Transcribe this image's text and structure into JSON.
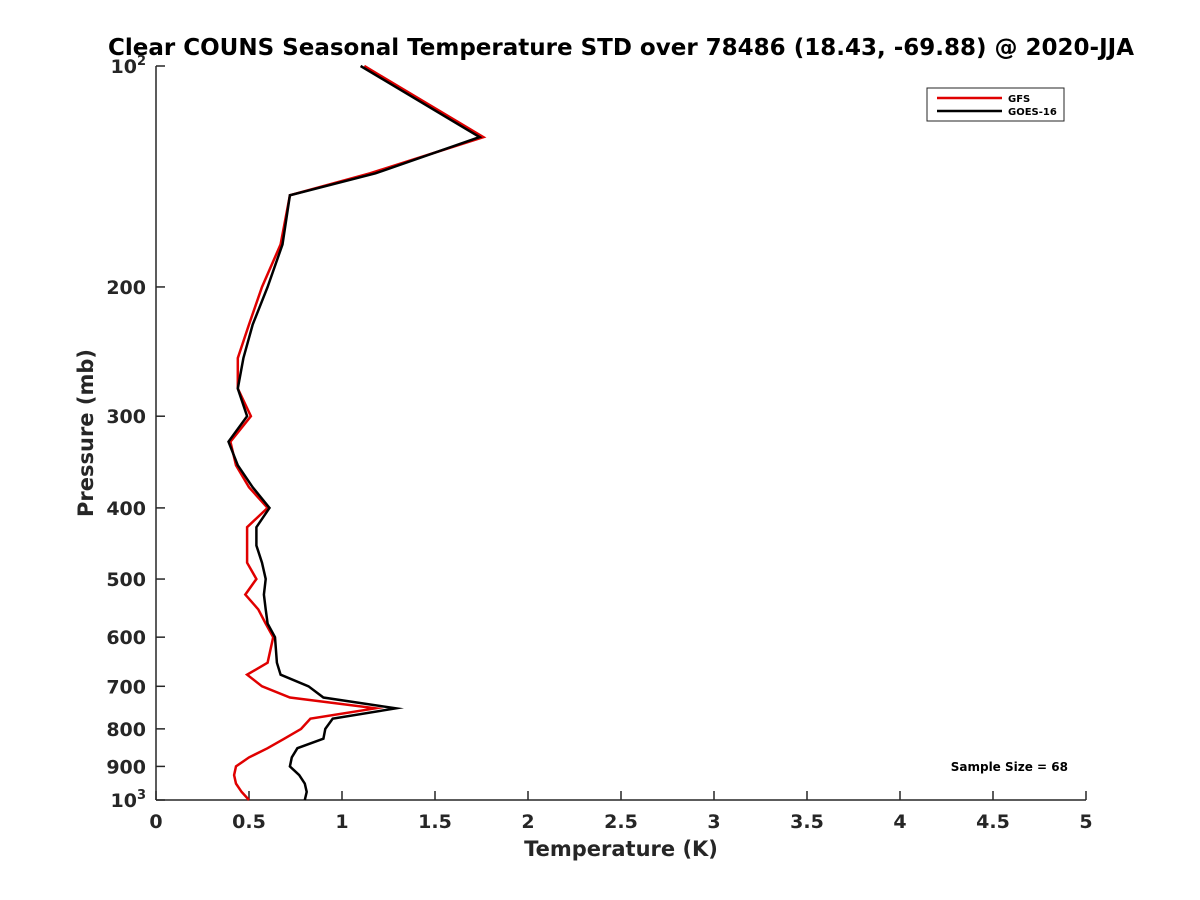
{
  "chart_data": {
    "type": "line",
    "title": "Clear COUNS Seasonal Temperature STD over 78486 (18.43, -69.88) @ 2020-JJA",
    "xlabel": "Temperature (K)",
    "ylabel": "Pressure (mb)",
    "xlim": [
      0,
      5
    ],
    "ylim": [
      1000,
      100
    ],
    "yscale": "log",
    "x_ticks": [
      {
        "value": 0,
        "label": "0"
      },
      {
        "value": 0.5,
        "label": "0.5"
      },
      {
        "value": 1,
        "label": "1"
      },
      {
        "value": 1.5,
        "label": "1.5"
      },
      {
        "value": 2,
        "label": "2"
      },
      {
        "value": 2.5,
        "label": "2.5"
      },
      {
        "value": 3,
        "label": "3"
      },
      {
        "value": 3.5,
        "label": "3.5"
      },
      {
        "value": 4,
        "label": "4"
      },
      {
        "value": 4.5,
        "label": "4.5"
      },
      {
        "value": 5,
        "label": "5"
      }
    ],
    "y_ticks": [
      {
        "value": 100,
        "base": "10",
        "exp": "2"
      },
      {
        "value": 200,
        "label": "200"
      },
      {
        "value": 300,
        "label": "300"
      },
      {
        "value": 400,
        "label": "400"
      },
      {
        "value": 500,
        "label": "500"
      },
      {
        "value": 600,
        "label": "600"
      },
      {
        "value": 700,
        "label": "700"
      },
      {
        "value": 800,
        "label": "800"
      },
      {
        "value": 900,
        "label": "900"
      },
      {
        "value": 1000,
        "base": "10",
        "exp": "3"
      }
    ],
    "grid": false,
    "legend_position": "top-right",
    "series": [
      {
        "name": "GFS",
        "color": "#e00000",
        "points": [
          {
            "p": 100,
            "t": 1.12
          },
          {
            "p": 125,
            "t": 1.76
          },
          {
            "p": 140,
            "t": 1.15
          },
          {
            "p": 150,
            "t": 0.72
          },
          {
            "p": 175,
            "t": 0.67
          },
          {
            "p": 200,
            "t": 0.57
          },
          {
            "p": 225,
            "t": 0.5
          },
          {
            "p": 250,
            "t": 0.44
          },
          {
            "p": 275,
            "t": 0.44
          },
          {
            "p": 300,
            "t": 0.51
          },
          {
            "p": 325,
            "t": 0.4
          },
          {
            "p": 350,
            "t": 0.43
          },
          {
            "p": 375,
            "t": 0.5
          },
          {
            "p": 400,
            "t": 0.6
          },
          {
            "p": 425,
            "t": 0.49
          },
          {
            "p": 450,
            "t": 0.49
          },
          {
            "p": 475,
            "t": 0.49
          },
          {
            "p": 500,
            "t": 0.54
          },
          {
            "p": 525,
            "t": 0.48
          },
          {
            "p": 550,
            "t": 0.55
          },
          {
            "p": 575,
            "t": 0.59
          },
          {
            "p": 600,
            "t": 0.63
          },
          {
            "p": 650,
            "t": 0.6
          },
          {
            "p": 675,
            "t": 0.49
          },
          {
            "p": 700,
            "t": 0.57
          },
          {
            "p": 725,
            "t": 0.72
          },
          {
            "p": 750,
            "t": 1.18
          },
          {
            "p": 775,
            "t": 0.83
          },
          {
            "p": 800,
            "t": 0.78
          },
          {
            "p": 825,
            "t": 0.69
          },
          {
            "p": 850,
            "t": 0.6
          },
          {
            "p": 875,
            "t": 0.5
          },
          {
            "p": 900,
            "t": 0.43
          },
          {
            "p": 925,
            "t": 0.42
          },
          {
            "p": 950,
            "t": 0.43
          },
          {
            "p": 975,
            "t": 0.46
          },
          {
            "p": 1000,
            "t": 0.5
          }
        ]
      },
      {
        "name": "GOES-16",
        "color": "#000000",
        "points": [
          {
            "p": 100,
            "t": 1.1
          },
          {
            "p": 125,
            "t": 1.74
          },
          {
            "p": 140,
            "t": 1.18
          },
          {
            "p": 150,
            "t": 0.72
          },
          {
            "p": 175,
            "t": 0.68
          },
          {
            "p": 200,
            "t": 0.6
          },
          {
            "p": 225,
            "t": 0.52
          },
          {
            "p": 250,
            "t": 0.47
          },
          {
            "p": 275,
            "t": 0.44
          },
          {
            "p": 300,
            "t": 0.49
          },
          {
            "p": 325,
            "t": 0.39
          },
          {
            "p": 350,
            "t": 0.44
          },
          {
            "p": 375,
            "t": 0.52
          },
          {
            "p": 400,
            "t": 0.61
          },
          {
            "p": 425,
            "t": 0.54
          },
          {
            "p": 450,
            "t": 0.54
          },
          {
            "p": 475,
            "t": 0.57
          },
          {
            "p": 500,
            "t": 0.59
          },
          {
            "p": 525,
            "t": 0.58
          },
          {
            "p": 550,
            "t": 0.59
          },
          {
            "p": 575,
            "t": 0.6
          },
          {
            "p": 600,
            "t": 0.64
          },
          {
            "p": 650,
            "t": 0.65
          },
          {
            "p": 675,
            "t": 0.67
          },
          {
            "p": 700,
            "t": 0.82
          },
          {
            "p": 725,
            "t": 0.9
          },
          {
            "p": 750,
            "t": 1.29
          },
          {
            "p": 775,
            "t": 0.95
          },
          {
            "p": 800,
            "t": 0.91
          },
          {
            "p": 825,
            "t": 0.9
          },
          {
            "p": 850,
            "t": 0.76
          },
          {
            "p": 875,
            "t": 0.73
          },
          {
            "p": 900,
            "t": 0.72
          },
          {
            "p": 925,
            "t": 0.77
          },
          {
            "p": 950,
            "t": 0.8
          },
          {
            "p": 975,
            "t": 0.81
          },
          {
            "p": 1000,
            "t": 0.8
          }
        ]
      }
    ],
    "annotations": [
      "Sample Size = 68"
    ]
  }
}
